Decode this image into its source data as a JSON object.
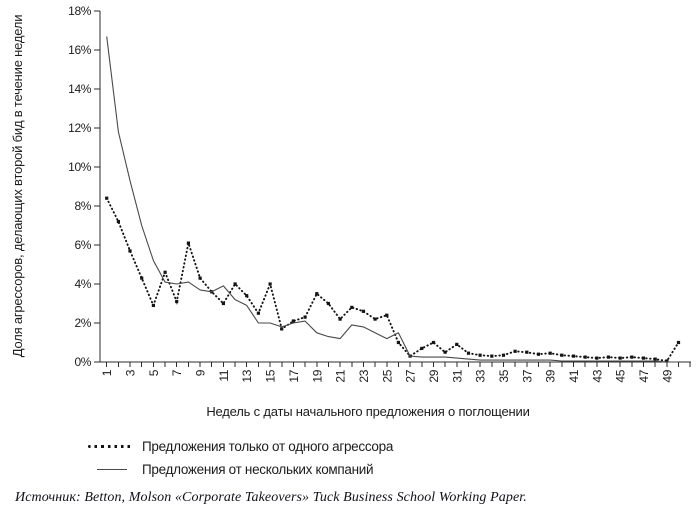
{
  "chart_data": {
    "type": "line",
    "title": "",
    "xlabel": "Недель с даты начального предложения о поглощении",
    "ylabel": "Доля агрессоров, делающих второй бид в течение недели",
    "ylim": [
      0,
      18
    ],
    "ytick_step": 2,
    "ytick_suffix": "%",
    "grid": false,
    "legend_position": "bottom-left",
    "x": [
      1,
      2,
      3,
      4,
      5,
      6,
      7,
      8,
      9,
      10,
      11,
      12,
      13,
      14,
      15,
      16,
      17,
      18,
      19,
      20,
      21,
      22,
      23,
      24,
      25,
      26,
      27,
      28,
      29,
      30,
      31,
      32,
      33,
      34,
      35,
      36,
      37,
      38,
      39,
      40,
      41,
      42,
      43,
      44,
      45,
      46,
      47,
      48,
      49,
      50
    ],
    "xtick_labeled": [
      1,
      3,
      5,
      7,
      9,
      11,
      13,
      15,
      17,
      19,
      21,
      23,
      25,
      27,
      29,
      31,
      33,
      35,
      37,
      39,
      41,
      43,
      45,
      47,
      49
    ],
    "series": [
      {
        "name": "Предложения только от одного агрессора",
        "style": "dotted",
        "color": "#141414",
        "values": [
          8.4,
          7.2,
          5.7,
          4.3,
          2.9,
          4.6,
          3.1,
          6.1,
          4.3,
          3.6,
          3.0,
          4.0,
          3.4,
          2.5,
          4.0,
          1.7,
          2.1,
          2.3,
          3.5,
          3.0,
          2.2,
          2.8,
          2.6,
          2.2,
          2.4,
          1.0,
          0.3,
          0.7,
          1.0,
          0.5,
          0.9,
          0.45,
          0.35,
          0.3,
          0.35,
          0.55,
          0.5,
          0.4,
          0.45,
          0.35,
          0.3,
          0.25,
          0.2,
          0.25,
          0.2,
          0.25,
          0.2,
          0.15,
          0.05,
          1.0
        ]
      },
      {
        "name": "Предложения от нескольких компаний",
        "style": "solid",
        "color": "#4a4a4a",
        "values": [
          16.7,
          11.8,
          9.3,
          7.0,
          5.2,
          4.1,
          4.0,
          4.1,
          3.7,
          3.6,
          3.9,
          3.2,
          2.9,
          2.0,
          2.0,
          1.8,
          2.0,
          2.1,
          1.5,
          1.3,
          1.2,
          1.9,
          1.8,
          1.5,
          1.2,
          1.5,
          0.3,
          0.25,
          0.25,
          0.25,
          0.2,
          0.15,
          0.1,
          0.1,
          0.1,
          0.1,
          0.1,
          0.1,
          0.1,
          0.05,
          0.05,
          0.05,
          0.05,
          0.05,
          0.05,
          0.05,
          0.05,
          0.05,
          0.0,
          0.0
        ]
      }
    ],
    "source": "Источник: Betton, Molson «Corporate Takeovers» Tuck Business School Working Paper."
  }
}
